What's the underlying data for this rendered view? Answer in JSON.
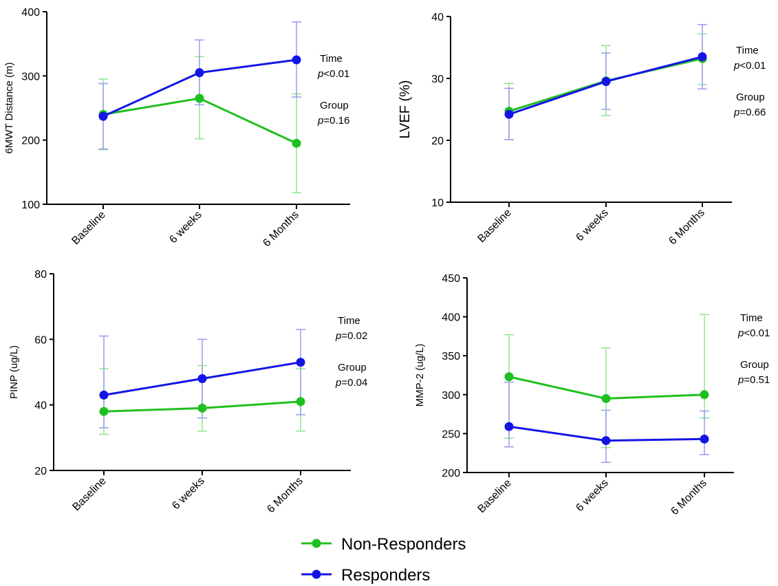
{
  "chart_data": [
    {
      "type": "line",
      "ylabel": "6MWT Distance (m)",
      "categories": [
        "Baseline",
        "6 weeks",
        "6 Months"
      ],
      "ylim": [
        100,
        400
      ],
      "yticks": [
        100,
        200,
        300,
        400
      ],
      "series": [
        {
          "name": "Non-Responders",
          "values": [
            240,
            265,
            195
          ],
          "err_low": [
            185,
            202,
            118
          ],
          "err_high": [
            295,
            330,
            272
          ]
        },
        {
          "name": "Responders",
          "values": [
            237,
            305,
            325
          ],
          "err_low": [
            186,
            255,
            267
          ],
          "err_high": [
            288,
            356,
            384
          ]
        }
      ],
      "annotations": [
        {
          "label": "Time",
          "p_prefix": "p",
          "p_value": "<0.01"
        },
        {
          "label": "Group",
          "p_prefix": "p",
          "p_value": "=0.16"
        }
      ]
    },
    {
      "type": "line",
      "ylabel": "LVEF (%)",
      "categories": [
        "Baseline",
        "6 weeks",
        "6 Months"
      ],
      "ylim": [
        10,
        40
      ],
      "yticks": [
        10,
        20,
        30,
        40
      ],
      "series": [
        {
          "name": "Non-Responders",
          "values": [
            24.7,
            29.6,
            33.2
          ],
          "err_low": [
            20.1,
            24.0,
            29.0
          ],
          "err_high": [
            29.2,
            35.3,
            37.2
          ]
        },
        {
          "name": "Responders",
          "values": [
            24.2,
            29.5,
            33.5
          ],
          "err_low": [
            20.1,
            25.0,
            28.3
          ],
          "err_high": [
            28.4,
            34.1,
            38.7
          ]
        }
      ],
      "annotations": [
        {
          "label": "Time",
          "p_prefix": "p",
          "p_value": "<0.01"
        },
        {
          "label": "Group",
          "p_prefix": "p",
          "p_value": "=0.66"
        }
      ]
    },
    {
      "type": "line",
      "ylabel": "PINP (ug/L)",
      "categories": [
        "Baseline",
        "6 weeks",
        "6 Months"
      ],
      "ylim": [
        20,
        80
      ],
      "yticks": [
        20,
        40,
        60,
        80
      ],
      "series": [
        {
          "name": "Non-Responders",
          "values": [
            38,
            39,
            41
          ],
          "err_low": [
            31,
            32,
            32
          ],
          "err_high": [
            51,
            52,
            51
          ]
        },
        {
          "name": "Responders",
          "values": [
            43,
            48,
            53
          ],
          "err_low": [
            33,
            36,
            37
          ],
          "err_high": [
            61,
            60,
            63
          ]
        }
      ],
      "annotations": [
        {
          "label": "Time",
          "p_prefix": "p",
          "p_value": "=0.02"
        },
        {
          "label": "Group",
          "p_prefix": "p",
          "p_value": "=0.04"
        }
      ]
    },
    {
      "type": "line",
      "ylabel": "MMP-2 (ug/L)",
      "categories": [
        "Baseline",
        "6 weeks",
        "6 Months"
      ],
      "ylim": [
        200,
        450
      ],
      "yticks": [
        200,
        250,
        300,
        350,
        400,
        450
      ],
      "series": [
        {
          "name": "Non-Responders",
          "values": [
            323,
            295,
            300
          ],
          "err_low": [
            244,
            232,
            270
          ],
          "err_high": [
            377,
            360,
            403
          ]
        },
        {
          "name": "Responders",
          "values": [
            259,
            241,
            243
          ],
          "err_low": [
            233,
            213,
            223
          ],
          "err_high": [
            316,
            280,
            279
          ]
        }
      ],
      "annotations": [
        {
          "label": "Time",
          "p_prefix": "p",
          "p_value": "<0.01"
        },
        {
          "label": "Group",
          "p_prefix": "p",
          "p_value": "=0.51"
        }
      ]
    }
  ],
  "legend": [
    {
      "label": "Non-Responders",
      "color": "#1ec01e"
    },
    {
      "label": "Responders",
      "color": "#1414e6"
    }
  ],
  "colors": {
    "non_responders": "#1ec01e",
    "non_responders_err": "#8ee68e",
    "responders": "#1414e6",
    "responders_err": "#9a9af0"
  }
}
